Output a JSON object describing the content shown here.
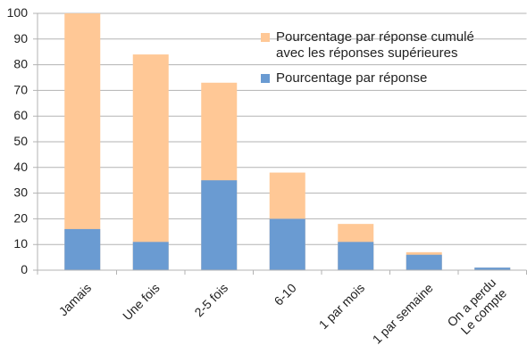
{
  "chart_data": {
    "type": "bar",
    "overlap": true,
    "categories": [
      "Jamais",
      "Une fois",
      "2-5 fois",
      "6-10",
      "1 par mois",
      "1 par semaine",
      "On a perdu\nLe compte"
    ],
    "series": [
      {
        "name": "Pourcentage par réponse cumulé\navec les réponses supérieures",
        "color": "#ffc896",
        "values": [
          100,
          84,
          73,
          38,
          18,
          7,
          1
        ]
      },
      {
        "name": "Pourcentage par réponse",
        "color": "#6a9bd2",
        "values": [
          16,
          11,
          35,
          20,
          11,
          6,
          1
        ]
      }
    ],
    "ylim": [
      0,
      100
    ],
    "yticks": [
      0,
      10,
      20,
      30,
      40,
      50,
      60,
      70,
      80,
      90,
      100
    ],
    "grid": true,
    "legend": "top-right"
  }
}
